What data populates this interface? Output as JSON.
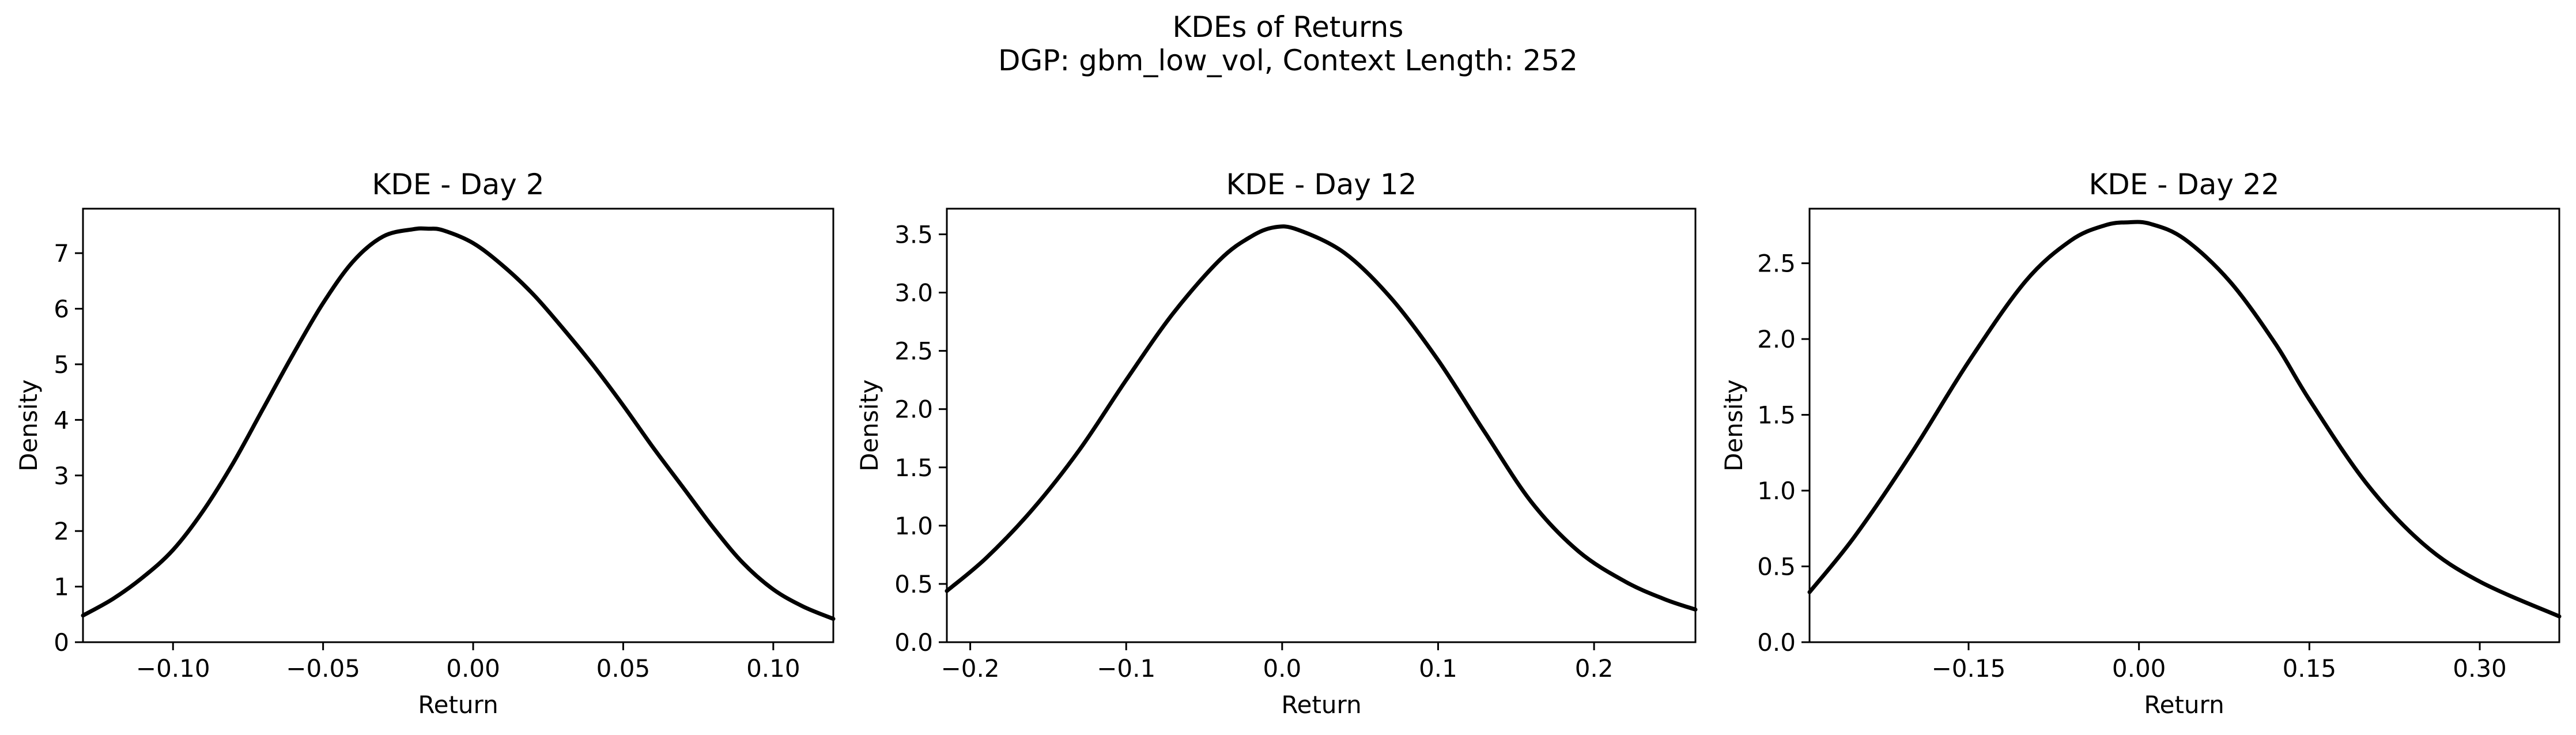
{
  "figure": {
    "title_line1": "KDEs of Returns",
    "title_line2": "DGP: gbm_low_vol, Context Length: 252"
  },
  "colors": {
    "line": "#000000",
    "background": "#ffffff"
  },
  "chart_data": [
    {
      "type": "line",
      "title": "KDE - Day 2",
      "xlabel": "Return",
      "ylabel": "Density",
      "xlim": [
        -0.13,
        0.12
      ],
      "ylim": [
        0,
        7.8
      ],
      "xticks": [
        -0.1,
        -0.05,
        0.0,
        0.05,
        0.1
      ],
      "xtick_labels": [
        "−0.10",
        "−0.05",
        "0.00",
        "0.05",
        "0.10"
      ],
      "yticks": [
        0,
        1,
        2,
        3,
        4,
        5,
        6,
        7
      ],
      "ytick_labels": [
        "0",
        "1",
        "2",
        "3",
        "4",
        "5",
        "6",
        "7"
      ],
      "grid": false,
      "series": [
        {
          "x": [
            -0.13,
            -0.12,
            -0.11,
            -0.1,
            -0.09,
            -0.08,
            -0.07,
            -0.06,
            -0.05,
            -0.04,
            -0.03,
            -0.02,
            -0.015,
            -0.01,
            0.0,
            0.01,
            0.02,
            0.03,
            0.04,
            0.05,
            0.06,
            0.07,
            0.08,
            0.09,
            0.1,
            0.11,
            0.12
          ],
          "y": [
            0.48,
            0.78,
            1.17,
            1.66,
            2.36,
            3.22,
            4.2,
            5.18,
            6.1,
            6.85,
            7.3,
            7.43,
            7.44,
            7.41,
            7.18,
            6.77,
            6.26,
            5.64,
            4.98,
            4.26,
            3.5,
            2.78,
            2.06,
            1.42,
            0.95,
            0.64,
            0.42
          ]
        }
      ]
    },
    {
      "type": "line",
      "title": "KDE - Day 12",
      "xlabel": "Return",
      "ylabel": "Density",
      "xlim": [
        -0.215,
        0.265
      ],
      "ylim": [
        0,
        3.72
      ],
      "xticks": [
        -0.2,
        -0.1,
        0.0,
        0.1,
        0.2
      ],
      "xtick_labels": [
        "−0.2",
        "−0.1",
        "0.0",
        "0.1",
        "0.2"
      ],
      "yticks": [
        0.0,
        0.5,
        1.0,
        1.5,
        2.0,
        2.5,
        3.0,
        3.5
      ],
      "ytick_labels": [
        "0.0",
        "0.5",
        "1.0",
        "1.5",
        "2.0",
        "2.5",
        "3.0",
        "3.5"
      ],
      "grid": false,
      "series": [
        {
          "x": [
            -0.215,
            -0.19,
            -0.16,
            -0.13,
            -0.1,
            -0.07,
            -0.04,
            -0.02,
            -0.005,
            0.01,
            0.04,
            0.07,
            0.1,
            0.13,
            0.16,
            0.19,
            0.22,
            0.245,
            0.265
          ],
          "y": [
            0.44,
            0.72,
            1.14,
            1.65,
            2.25,
            2.82,
            3.28,
            3.48,
            3.56,
            3.54,
            3.34,
            2.95,
            2.42,
            1.8,
            1.2,
            0.78,
            0.52,
            0.37,
            0.28
          ]
        }
      ]
    },
    {
      "type": "line",
      "title": "KDE - Day 22",
      "xlabel": "Return",
      "ylabel": "Density",
      "xlim": [
        -0.29,
        0.37
      ],
      "ylim": [
        0,
        2.86
      ],
      "xticks": [
        -0.15,
        0.0,
        0.15,
        0.3
      ],
      "xtick_labels": [
        "−0.15",
        "0.00",
        "0.15",
        "0.30"
      ],
      "yticks": [
        0.0,
        0.5,
        1.0,
        1.5,
        2.0,
        2.5
      ],
      "ytick_labels": [
        "0.0",
        "0.5",
        "1.0",
        "1.5",
        "2.0",
        "2.5"
      ],
      "grid": false,
      "series": [
        {
          "x": [
            -0.29,
            -0.25,
            -0.2,
            -0.15,
            -0.1,
            -0.06,
            -0.03,
            -0.01,
            0.01,
            0.04,
            0.08,
            0.12,
            0.15,
            0.2,
            0.25,
            0.3,
            0.37
          ],
          "y": [
            0.33,
            0.7,
            1.25,
            1.85,
            2.38,
            2.65,
            2.75,
            2.77,
            2.76,
            2.66,
            2.38,
            1.97,
            1.6,
            1.05,
            0.65,
            0.4,
            0.17
          ]
        }
      ]
    }
  ]
}
